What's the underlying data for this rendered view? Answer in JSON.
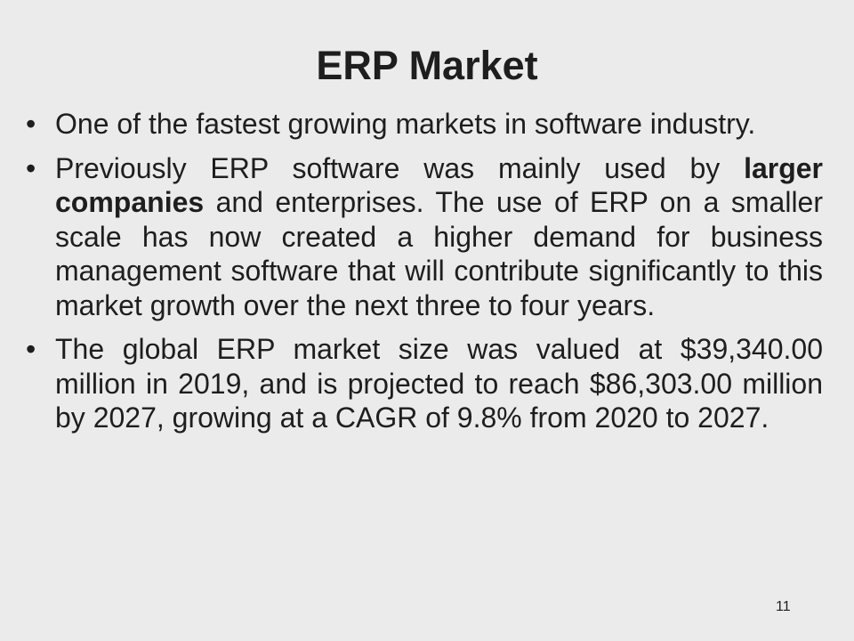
{
  "slide": {
    "title": "ERP Market",
    "page_number": "11",
    "bullet_marker": "•",
    "bullets": [
      {
        "text": "One of the fastest growing markets in software industry."
      },
      {
        "part1": "Previously ERP software was mainly used by ",
        "bold": "larger companies",
        "part2": " and enterprises. The use of ERP on a smaller scale has now created a higher demand for business management software that will contribute significantly to this market growth over the next three to four years."
      },
      {
        "text": "The global ERP market size was valued at $39,340.00 million in 2019, and is projected to reach $86,303.00 million by 2027, growing at a CAGR of 9.8% from 2020 to 2027."
      }
    ]
  }
}
